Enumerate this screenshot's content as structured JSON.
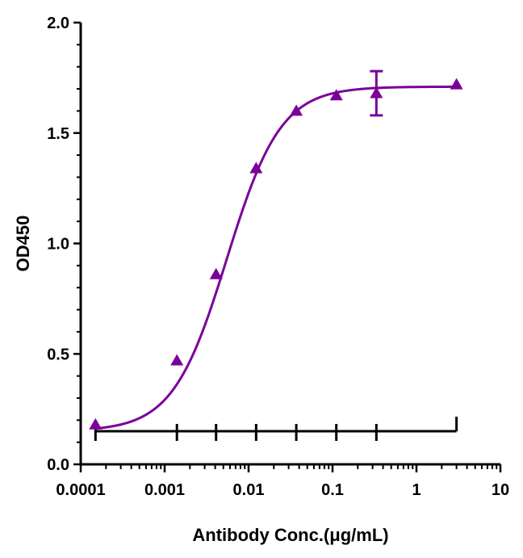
{
  "chart_data": {
    "type": "scatter",
    "title": "",
    "xlabel": "Antibody Conc.(μg/mL)",
    "ylabel": "OD450",
    "x_scale": "log",
    "xlim": [
      0.0001,
      10
    ],
    "ylim": [
      0,
      2.0
    ],
    "x_ticks": [
      "0.0001",
      "0.001",
      "0.01",
      "0.1",
      "1",
      "10"
    ],
    "y_ticks": [
      "0.0",
      "0.5",
      "1.0",
      "1.5",
      "2.0"
    ],
    "grid": false,
    "legend": "none",
    "series": [
      {
        "marker": "triangle",
        "color": "#7B0099",
        "x": [
          0.00015,
          0.0014,
          0.0041,
          0.0123,
          0.037,
          0.111,
          0.333,
          3.0
        ],
        "y": [
          0.18,
          0.47,
          0.86,
          1.34,
          1.6,
          1.67,
          1.68,
          1.72
        ],
        "error": [
          0,
          0,
          0,
          0,
          0,
          0,
          0.1,
          0
        ]
      }
    ],
    "fit": {
      "type": "4PL",
      "color": "#7B0099",
      "bottom": 0.15,
      "top": 1.71,
      "ec50": 0.0055,
      "hill": 1.35
    },
    "baseline": {
      "color": "#000000",
      "y": 0.15,
      "x": [
        0.00015,
        0.0014,
        0.0041,
        0.0123,
        0.037,
        0.111,
        0.333,
        3.0
      ]
    }
  }
}
